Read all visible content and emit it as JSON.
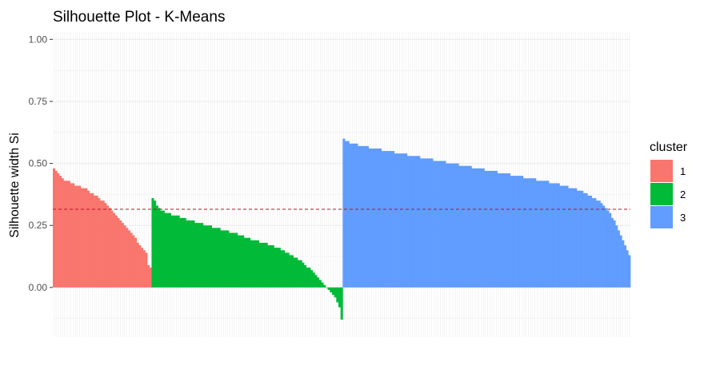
{
  "chart_data": {
    "type": "bar",
    "title": "Silhouette Plot - K-Means",
    "ylabel": "Silhouette width Si",
    "xlabel": "",
    "ylim": [
      -0.2,
      1.03
    ],
    "y_ticks": [
      0.0,
      0.25,
      0.5,
      0.75,
      1.0
    ],
    "y_tick_labels": [
      "0.00",
      "0.25",
      "0.50",
      "0.75",
      "1.00"
    ],
    "grid": true,
    "average_silhouette_width": 0.315,
    "legend": {
      "title": "cluster",
      "placement": "right",
      "entries": [
        {
          "label": "1",
          "color": "#F8766D"
        },
        {
          "label": "2",
          "color": "#00BA38"
        },
        {
          "label": "3",
          "color": "#619CFF"
        }
      ]
    },
    "series": [
      {
        "cluster": "1",
        "color": "#F8766D",
        "values": [
          0.48,
          0.47,
          0.46,
          0.45,
          0.44,
          0.43,
          0.43,
          0.43,
          0.42,
          0.42,
          0.41,
          0.41,
          0.41,
          0.4,
          0.4,
          0.4,
          0.39,
          0.38,
          0.38,
          0.37,
          0.37,
          0.36,
          0.35,
          0.35,
          0.34,
          0.33,
          0.32,
          0.31,
          0.3,
          0.29,
          0.28,
          0.27,
          0.26,
          0.25,
          0.24,
          0.23,
          0.22,
          0.21,
          0.2,
          0.18,
          0.17,
          0.16,
          0.15,
          0.14,
          0.09,
          0.08
        ]
      },
      {
        "cluster": "2",
        "color": "#00BA38",
        "values": [
          0.36,
          0.35,
          0.33,
          0.32,
          0.31,
          0.31,
          0.3,
          0.3,
          0.3,
          0.29,
          0.29,
          0.29,
          0.29,
          0.28,
          0.28,
          0.28,
          0.27,
          0.27,
          0.27,
          0.27,
          0.26,
          0.26,
          0.26,
          0.26,
          0.25,
          0.25,
          0.25,
          0.25,
          0.24,
          0.24,
          0.24,
          0.24,
          0.23,
          0.23,
          0.23,
          0.23,
          0.22,
          0.22,
          0.22,
          0.22,
          0.21,
          0.21,
          0.21,
          0.2,
          0.2,
          0.2,
          0.19,
          0.19,
          0.19,
          0.19,
          0.18,
          0.18,
          0.18,
          0.18,
          0.17,
          0.17,
          0.17,
          0.16,
          0.16,
          0.16,
          0.15,
          0.15,
          0.14,
          0.14,
          0.13,
          0.13,
          0.12,
          0.12,
          0.11,
          0.11,
          0.1,
          0.09,
          0.08,
          0.08,
          0.07,
          0.06,
          0.05,
          0.04,
          0.03,
          0.02,
          0.01,
          0.0,
          -0.01,
          -0.02,
          -0.03,
          -0.04,
          -0.06,
          -0.08,
          -0.13
        ]
      },
      {
        "cluster": "3",
        "color": "#619CFF",
        "values": [
          0.6,
          0.59,
          0.59,
          0.58,
          0.58,
          0.58,
          0.58,
          0.57,
          0.57,
          0.57,
          0.57,
          0.57,
          0.56,
          0.56,
          0.56,
          0.56,
          0.56,
          0.56,
          0.55,
          0.55,
          0.55,
          0.55,
          0.55,
          0.55,
          0.54,
          0.54,
          0.54,
          0.54,
          0.54,
          0.54,
          0.53,
          0.53,
          0.53,
          0.53,
          0.53,
          0.53,
          0.52,
          0.52,
          0.52,
          0.52,
          0.52,
          0.52,
          0.51,
          0.51,
          0.51,
          0.51,
          0.51,
          0.51,
          0.5,
          0.5,
          0.5,
          0.5,
          0.5,
          0.5,
          0.49,
          0.49,
          0.49,
          0.49,
          0.49,
          0.49,
          0.48,
          0.48,
          0.48,
          0.48,
          0.48,
          0.48,
          0.47,
          0.47,
          0.47,
          0.47,
          0.47,
          0.47,
          0.46,
          0.46,
          0.46,
          0.46,
          0.46,
          0.46,
          0.45,
          0.45,
          0.45,
          0.45,
          0.45,
          0.45,
          0.44,
          0.44,
          0.44,
          0.44,
          0.44,
          0.44,
          0.43,
          0.43,
          0.43,
          0.43,
          0.43,
          0.43,
          0.42,
          0.42,
          0.42,
          0.42,
          0.42,
          0.41,
          0.41,
          0.41,
          0.41,
          0.4,
          0.4,
          0.4,
          0.4,
          0.39,
          0.39,
          0.39,
          0.38,
          0.38,
          0.37,
          0.37,
          0.36,
          0.36,
          0.35,
          0.35,
          0.34,
          0.33,
          0.32,
          0.31,
          0.3,
          0.28,
          0.27,
          0.25,
          0.23,
          0.21,
          0.19,
          0.17,
          0.15,
          0.13
        ]
      }
    ]
  }
}
